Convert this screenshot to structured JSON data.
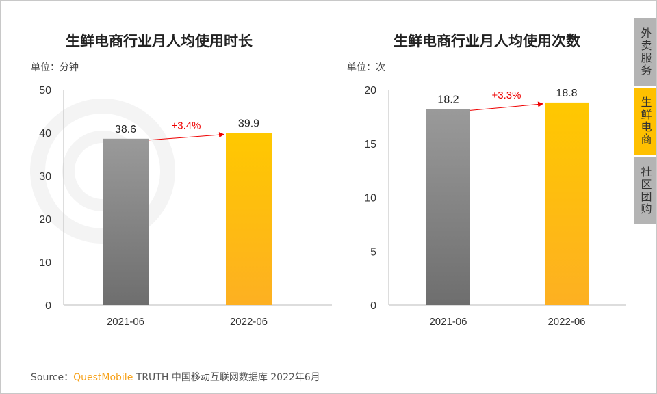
{
  "tabs": [
    {
      "label": "外卖服务",
      "active": false
    },
    {
      "label": "生鲜电商",
      "active": true
    },
    {
      "label": "社区团购",
      "active": false
    }
  ],
  "watermark": "QUEST MOBILE",
  "source": {
    "prefix": "Source：",
    "brand": "QuestMobile",
    "text": " TRUTH 中国移动互联网数据库 2022年6月"
  },
  "chart_data": [
    {
      "type": "bar",
      "title": "生鲜电商行业月人均使用时长",
      "unit": "单位：分钟",
      "categories": [
        "2021-06",
        "2022-06"
      ],
      "values": [
        38.6,
        39.9
      ],
      "ylim": [
        0,
        50
      ],
      "yticks": [
        0,
        10,
        20,
        30,
        40,
        50
      ],
      "labels": [
        "38.6",
        "39.9"
      ],
      "growth": "+3.4%",
      "colors": [
        "#888888",
        "#ffc000"
      ]
    },
    {
      "type": "bar",
      "title": "生鲜电商行业月人均使用次数",
      "unit": "单位：次",
      "categories": [
        "2021-06",
        "2022-06"
      ],
      "values": [
        18.2,
        18.8
      ],
      "ylim": [
        0,
        20
      ],
      "yticks": [
        0,
        5,
        10,
        15,
        20
      ],
      "labels": [
        "18.2",
        "18.8"
      ],
      "growth": "+3.3%",
      "colors": [
        "#888888",
        "#ffc000"
      ]
    }
  ]
}
